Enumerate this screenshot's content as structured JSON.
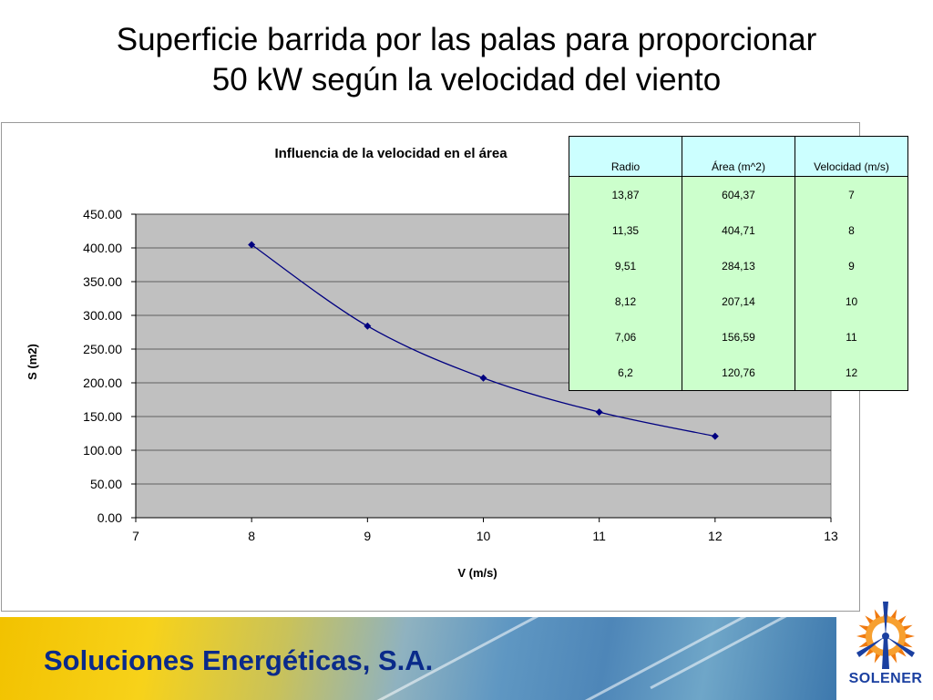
{
  "slide": {
    "title_line1": "Superficie barrida por las palas para proporcionar",
    "title_line2": "50 kW según la velocidad del viento"
  },
  "chart_data": {
    "type": "line",
    "title": "Influencia de la velocidad en el área",
    "xlabel": "V (m/s)",
    "ylabel": "S (m2)",
    "xlim": [
      7,
      13
    ],
    "ylim": [
      0,
      450
    ],
    "x_ticks": [
      7,
      8,
      9,
      10,
      11,
      12,
      13
    ],
    "y_ticks": [
      "0.00",
      "50.00",
      "100.00",
      "150.00",
      "200.00",
      "250.00",
      "300.00",
      "350.00",
      "400.00",
      "450.00"
    ],
    "grid": "horizontal",
    "legend": "none",
    "series": [
      {
        "x": [
          8,
          9,
          10,
          11,
          12
        ],
        "y": [
          404.71,
          284.13,
          207.14,
          156.59,
          120.76
        ],
        "color": "#000080"
      }
    ],
    "plot_background": "#c0c0c0"
  },
  "table": {
    "headers": [
      "Radio",
      "Área (m^2)",
      "Velocidad (m/s)"
    ],
    "rows": [
      [
        "13,87",
        "604,37",
        "7"
      ],
      [
        "11,35",
        "404,71",
        "8"
      ],
      [
        "9,51",
        "284,13",
        "9"
      ],
      [
        "8,12",
        "207,14",
        "10"
      ],
      [
        "7,06",
        "156,59",
        "11"
      ],
      [
        "6,2",
        "120,76",
        "12"
      ]
    ]
  },
  "footer": {
    "company": "Soluciones Energéticas, S.A.",
    "logo_text": "SOLENER"
  },
  "colors": {
    "header_cell": "#ccffff",
    "data_cell": "#ccffcc",
    "company_text": "#0a2a8a",
    "logo_sun": "#f07a10",
    "logo_blue": "#1a3fa0"
  }
}
